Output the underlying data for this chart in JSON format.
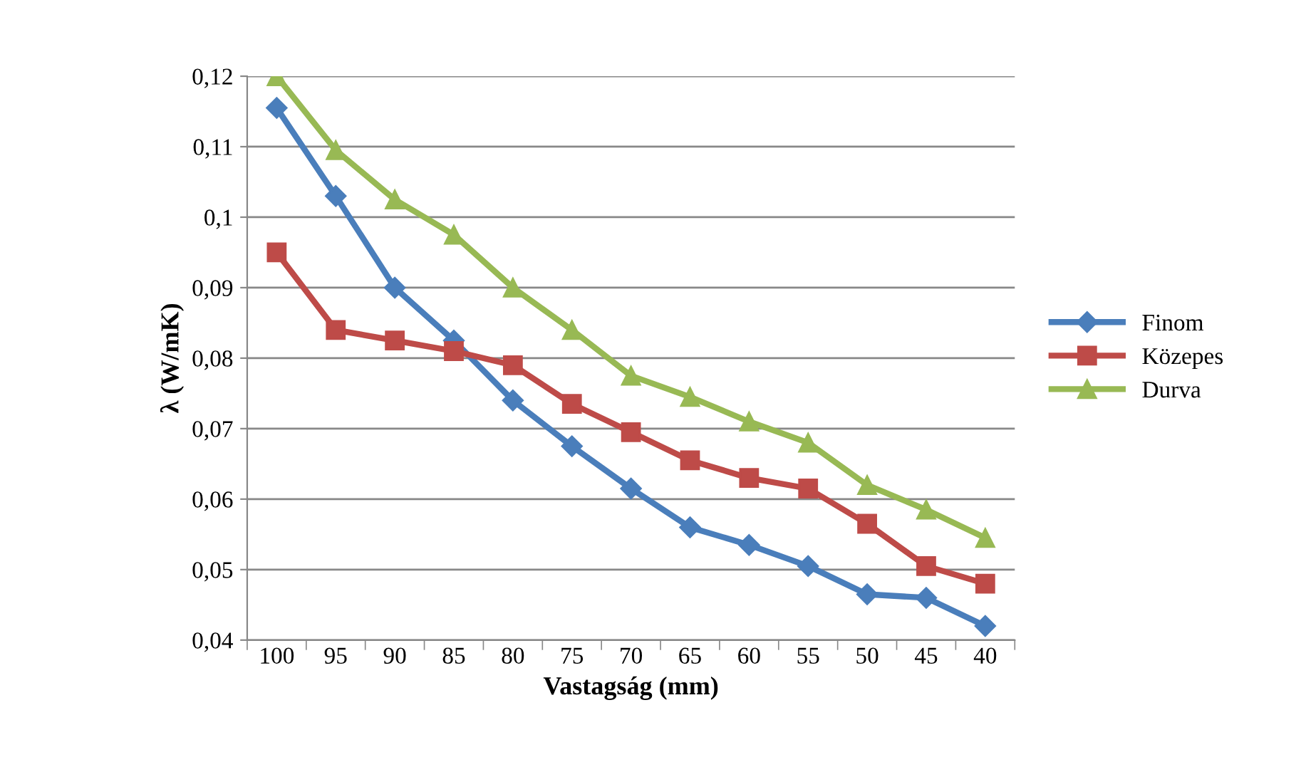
{
  "chart_data": {
    "type": "line",
    "xlabel": "Vastagság (mm)",
    "ylabel": "λ (W/mK)",
    "categories": [
      "100",
      "95",
      "90",
      "85",
      "80",
      "75",
      "70",
      "65",
      "60",
      "55",
      "50",
      "45",
      "40"
    ],
    "series": [
      {
        "name": "Finom",
        "color": "#4a7ebb",
        "marker": "diamond",
        "values": [
          0.1155,
          0.103,
          0.09,
          0.0825,
          0.074,
          0.0675,
          0.0615,
          0.056,
          0.0535,
          0.0505,
          0.0465,
          0.046,
          0.042
        ]
      },
      {
        "name": "Közepes",
        "color": "#be4b48",
        "marker": "square",
        "values": [
          0.095,
          0.084,
          0.0825,
          0.081,
          0.079,
          0.0735,
          0.0695,
          0.0655,
          0.063,
          0.0615,
          0.0565,
          0.0505,
          0.048
        ]
      },
      {
        "name": "Durva",
        "color": "#98b954",
        "marker": "triangle",
        "values": [
          0.12,
          0.1095,
          0.1025,
          0.0975,
          0.09,
          0.084,
          0.0775,
          0.0745,
          0.071,
          0.068,
          0.062,
          0.0585,
          0.0545
        ]
      }
    ],
    "ylim": [
      0.04,
      0.12
    ],
    "yticks": [
      {
        "value": 0.04,
        "label": "0,04"
      },
      {
        "value": 0.05,
        "label": "0,05"
      },
      {
        "value": 0.06,
        "label": "0,06"
      },
      {
        "value": 0.07,
        "label": "0,07"
      },
      {
        "value": 0.08,
        "label": "0,08"
      },
      {
        "value": 0.09,
        "label": "0,09"
      },
      {
        "value": 0.1,
        "label": "0,1"
      },
      {
        "value": 0.11,
        "label": "0,11"
      },
      {
        "value": 0.12,
        "label": "0,12"
      }
    ],
    "grid": "y",
    "legend": "right",
    "line_style": "solid"
  }
}
